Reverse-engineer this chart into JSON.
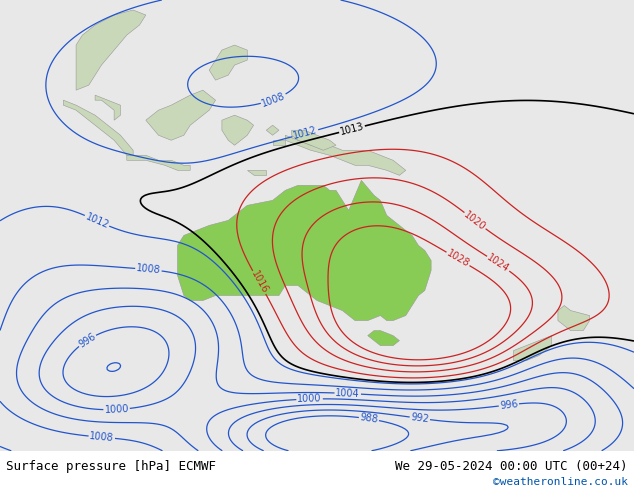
{
  "title_left": "Surface pressure [hPa] ECMWF",
  "title_right": "We 29-05-2024 00:00 UTC (00+24)",
  "copyright": "©weatheronline.co.uk",
  "bg_color": "#e8e8e8",
  "land_color": "#c8d8b8",
  "australia_color": "#88cc55",
  "figsize": [
    6.34,
    4.9
  ],
  "dpi": 100,
  "footer_fontsize": 9,
  "copyright_color": "#0055aa",
  "label_fontsize": 7
}
